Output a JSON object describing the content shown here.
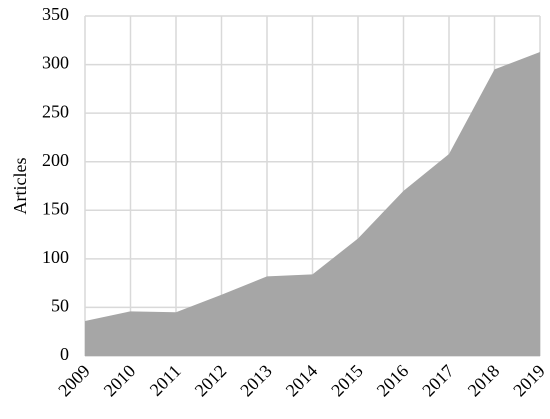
{
  "chart_data": {
    "type": "area",
    "y_label": "Articles",
    "x": [
      2009,
      2010,
      2011,
      2012,
      2013,
      2014,
      2015,
      2016,
      2017,
      2018,
      2019
    ],
    "values": [
      36,
      46,
      45,
      63,
      82,
      84,
      121,
      170,
      208,
      295,
      313
    ],
    "color": "#a6a6a6",
    "xlim": [
      2009,
      2019
    ],
    "xticks": [
      2009,
      2010,
      2011,
      2012,
      2013,
      2014,
      2015,
      2016,
      2017,
      2018,
      2019
    ],
    "ylim": [
      0,
      350
    ],
    "yticks": [
      0,
      50,
      100,
      150,
      200,
      250,
      300,
      350
    ],
    "grid": true
  }
}
